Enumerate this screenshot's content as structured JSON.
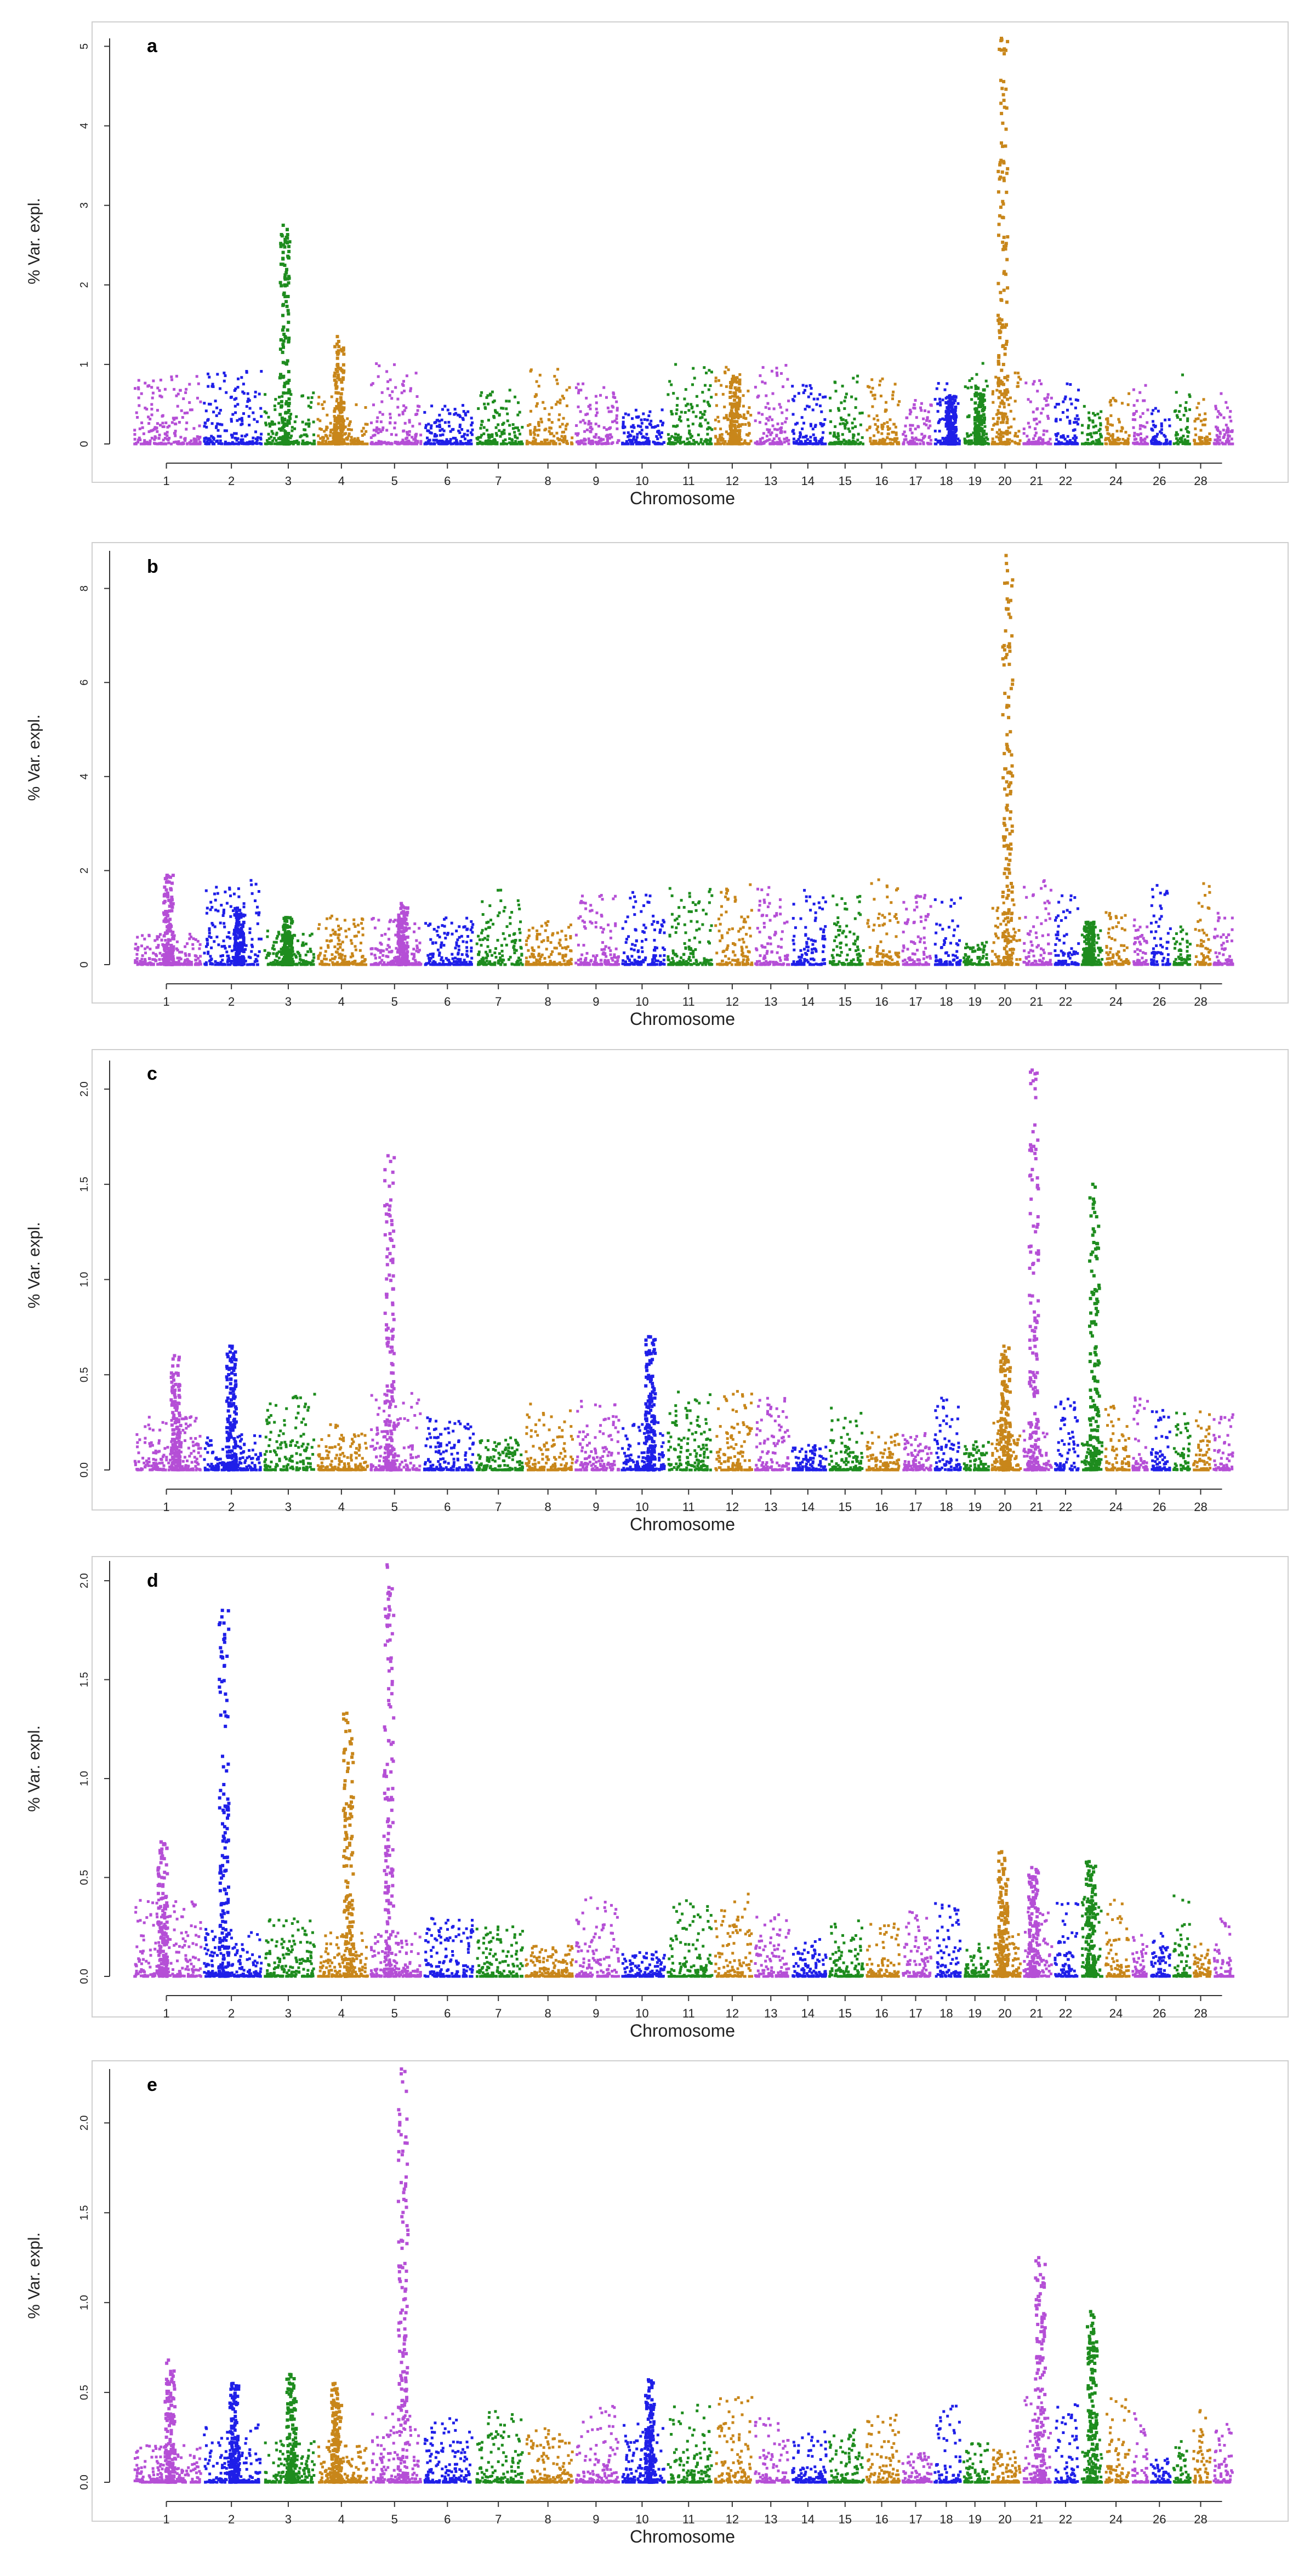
{
  "figure": {
    "description_colors": [
      "#B54FD6",
      "#1F1FE8",
      "#1E8C1E",
      "#C8861A"
    ]
  },
  "chart_data": [
    {
      "panel": "a",
      "type": "scatter",
      "title": "",
      "xlabel": "Chromosome",
      "ylabel": "% Var. expl.",
      "ylim": [
        0,
        5.1
      ],
      "yticks": [
        0,
        1,
        2,
        3,
        4,
        5
      ],
      "xtick_labels": [
        "1",
        "2",
        "3",
        "4",
        "5",
        "6",
        "7",
        "8",
        "9",
        "10",
        "11",
        "12",
        "13",
        "14",
        "15",
        "16",
        "17",
        "18",
        "19",
        "20",
        "21",
        "22",
        "24",
        "26",
        "28"
      ],
      "peaks": [
        {
          "chromosome": "3",
          "value": 2.75
        },
        {
          "chromosome": "4",
          "value": 1.35
        },
        {
          "chromosome": "12",
          "value": 0.85
        },
        {
          "chromosome": "18",
          "value": 0.6
        },
        {
          "chromosome": "19",
          "value": 0.7
        },
        {
          "chromosome": "20",
          "value": 5.1
        }
      ]
    },
    {
      "panel": "b",
      "type": "scatter",
      "title": "",
      "xlabel": "Chromosome",
      "ylabel": "% Var. expl.",
      "ylim": [
        0,
        8.8
      ],
      "yticks": [
        0,
        2,
        4,
        6,
        8
      ],
      "xtick_labels": [
        "1",
        "2",
        "3",
        "4",
        "5",
        "6",
        "7",
        "8",
        "9",
        "10",
        "11",
        "12",
        "13",
        "14",
        "15",
        "16",
        "17",
        "18",
        "19",
        "20",
        "21",
        "22",
        "24",
        "26",
        "28"
      ],
      "peaks": [
        {
          "chromosome": "1",
          "value": 1.9
        },
        {
          "chromosome": "2",
          "value": 1.2
        },
        {
          "chromosome": "3",
          "value": 1.0
        },
        {
          "chromosome": "5",
          "value": 1.3
        },
        {
          "chromosome": "20",
          "value": 8.7
        },
        {
          "chromosome": "23",
          "value": 0.9
        }
      ]
    },
    {
      "panel": "c",
      "type": "scatter",
      "title": "",
      "xlabel": "Chromosome",
      "ylabel": "% Var. expl.",
      "ylim": [
        0,
        2.15
      ],
      "yticks": [
        "0.0",
        "0.5",
        "1.0",
        "1.5",
        "2.0"
      ],
      "xtick_labels": [
        "1",
        "2",
        "3",
        "4",
        "5",
        "6",
        "7",
        "8",
        "9",
        "10",
        "11",
        "12",
        "13",
        "14",
        "15",
        "16",
        "17",
        "18",
        "19",
        "20",
        "21",
        "22",
        "24",
        "26",
        "28"
      ],
      "peaks": [
        {
          "chromosome": "1",
          "value": 0.6
        },
        {
          "chromosome": "2",
          "value": 0.65
        },
        {
          "chromosome": "5",
          "value": 1.65
        },
        {
          "chromosome": "10",
          "value": 0.7
        },
        {
          "chromosome": "20",
          "value": 0.65
        },
        {
          "chromosome": "21",
          "value": 2.1
        },
        {
          "chromosome": "23",
          "value": 1.5
        }
      ]
    },
    {
      "panel": "d",
      "type": "scatter",
      "title": "",
      "xlabel": "Chromosome",
      "ylabel": "% Var. expl.",
      "ylim": [
        0,
        2.1
      ],
      "yticks": [
        "0.0",
        "0.5",
        "1.0",
        "1.5",
        "2.0"
      ],
      "xtick_labels": [
        "1",
        "2",
        "3",
        "4",
        "5",
        "6",
        "7",
        "8",
        "9",
        "10",
        "11",
        "12",
        "13",
        "14",
        "15",
        "16",
        "17",
        "18",
        "19",
        "20",
        "21",
        "22",
        "24",
        "26",
        "28"
      ],
      "peaks": [
        {
          "chromosome": "1",
          "value": 0.68
        },
        {
          "chromosome": "2",
          "value": 1.85
        },
        {
          "chromosome": "4",
          "value": 1.33
        },
        {
          "chromosome": "5",
          "value": 2.08
        },
        {
          "chromosome": "20",
          "value": 0.63
        },
        {
          "chromosome": "21",
          "value": 0.55
        },
        {
          "chromosome": "23",
          "value": 0.58
        }
      ]
    },
    {
      "panel": "e",
      "type": "scatter",
      "title": "",
      "xlabel": "Chromosome",
      "ylabel": "% Var. expl.",
      "ylim": [
        0,
        2.3
      ],
      "yticks": [
        "0.0",
        "0.5",
        "1.0",
        "1.5",
        "2.0"
      ],
      "xtick_labels": [
        "1",
        "2",
        "3",
        "4",
        "5",
        "6",
        "7",
        "8",
        "9",
        "10",
        "11",
        "12",
        "13",
        "14",
        "15",
        "16",
        "17",
        "18",
        "19",
        "20",
        "21",
        "22",
        "24",
        "26",
        "28"
      ],
      "peaks": [
        {
          "chromosome": "1",
          "value": 0.68
        },
        {
          "chromosome": "2",
          "value": 0.55
        },
        {
          "chromosome": "3",
          "value": 0.6
        },
        {
          "chromosome": "4",
          "value": 0.55
        },
        {
          "chromosome": "5",
          "value": 2.3
        },
        {
          "chromosome": "10",
          "value": 0.57
        },
        {
          "chromosome": "21",
          "value": 1.25
        },
        {
          "chromosome": "23",
          "value": 0.95
        }
      ]
    }
  ]
}
